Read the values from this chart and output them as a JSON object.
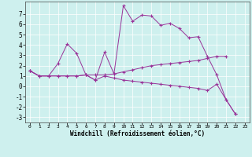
{
  "xlabel": "Windchill (Refroidissement éolien,°C)",
  "background_color": "#cef0ee",
  "line_color": "#993399",
  "xlim_min": -0.5,
  "xlim_max": 23.5,
  "ylim_min": -3.5,
  "ylim_max": 8.2,
  "xticks": [
    0,
    1,
    2,
    3,
    4,
    5,
    6,
    7,
    8,
    9,
    10,
    11,
    12,
    13,
    14,
    15,
    16,
    17,
    18,
    19,
    20,
    21,
    22,
    23
  ],
  "yticks": [
    -3,
    -2,
    -1,
    0,
    1,
    2,
    3,
    4,
    5,
    6,
    7
  ],
  "curve1_x": [
    0,
    1,
    2,
    3,
    4,
    5,
    6,
    7,
    8,
    9,
    10,
    11,
    12,
    13,
    14,
    15,
    16,
    17,
    18,
    19,
    20,
    21,
    22
  ],
  "curve1_y": [
    1.5,
    1.0,
    1.0,
    2.2,
    4.1,
    3.2,
    1.1,
    0.6,
    3.3,
    1.2,
    7.8,
    6.3,
    6.9,
    6.8,
    5.9,
    6.1,
    5.6,
    4.7,
    4.8,
    2.9,
    1.1,
    -1.3,
    -2.7
  ],
  "curve2_x": [
    0,
    1,
    2,
    3,
    4,
    5,
    6,
    7,
    8,
    9,
    10,
    11,
    12,
    13,
    14,
    15,
    16,
    17,
    18,
    19,
    20,
    21
  ],
  "curve2_y": [
    1.5,
    1.0,
    1.0,
    1.0,
    1.0,
    1.0,
    1.1,
    1.1,
    1.1,
    1.2,
    1.4,
    1.6,
    1.8,
    2.0,
    2.1,
    2.2,
    2.3,
    2.4,
    2.5,
    2.7,
    2.9,
    2.9
  ],
  "curve3_x": [
    0,
    1,
    2,
    3,
    4,
    5,
    6,
    7,
    8,
    9,
    10,
    11,
    12,
    13,
    14,
    15,
    16,
    17,
    18,
    19,
    20,
    21,
    22
  ],
  "curve3_y": [
    1.5,
    1.0,
    1.0,
    1.0,
    1.0,
    1.0,
    1.1,
    0.6,
    1.0,
    0.8,
    0.6,
    0.5,
    0.4,
    0.3,
    0.2,
    0.1,
    0.0,
    -0.1,
    -0.2,
    -0.4,
    0.2,
    -1.3,
    -2.7
  ]
}
